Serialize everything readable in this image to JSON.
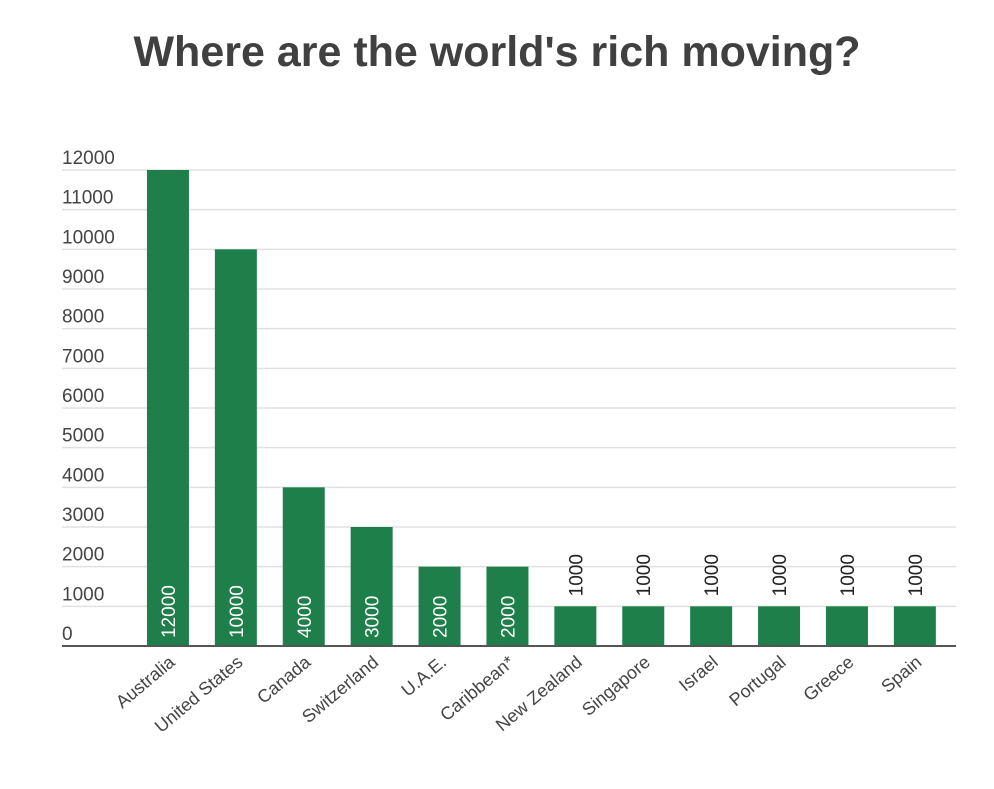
{
  "chart_data": {
    "type": "bar",
    "title": "Where are the world's rich moving?",
    "xlabel": "",
    "ylabel": "",
    "ylim": [
      0,
      12000
    ],
    "yticks": [
      0,
      1000,
      2000,
      3000,
      4000,
      5000,
      6000,
      7000,
      8000,
      9000,
      10000,
      11000,
      12000
    ],
    "grid": true,
    "legend": "none",
    "categories": [
      "Australia",
      "United States",
      "Canada",
      "Switzerland",
      "U.A.E.",
      "Caribbean*",
      "New Zealand",
      "Singapore",
      "Israel",
      "Portugal",
      "Greece",
      "Spain"
    ],
    "values": [
      12000,
      10000,
      4000,
      3000,
      2000,
      2000,
      1000,
      1000,
      1000,
      1000,
      1000,
      1000
    ],
    "data_labels": [
      "12000",
      "10000",
      "4000",
      "3000",
      "2000",
      "2000",
      "1000",
      "1000",
      "1000",
      "1000",
      "1000",
      "1000"
    ],
    "colors": {
      "bar": "#1e7f4a",
      "grid": "#e0e0e0",
      "axis": "#555555"
    }
  }
}
